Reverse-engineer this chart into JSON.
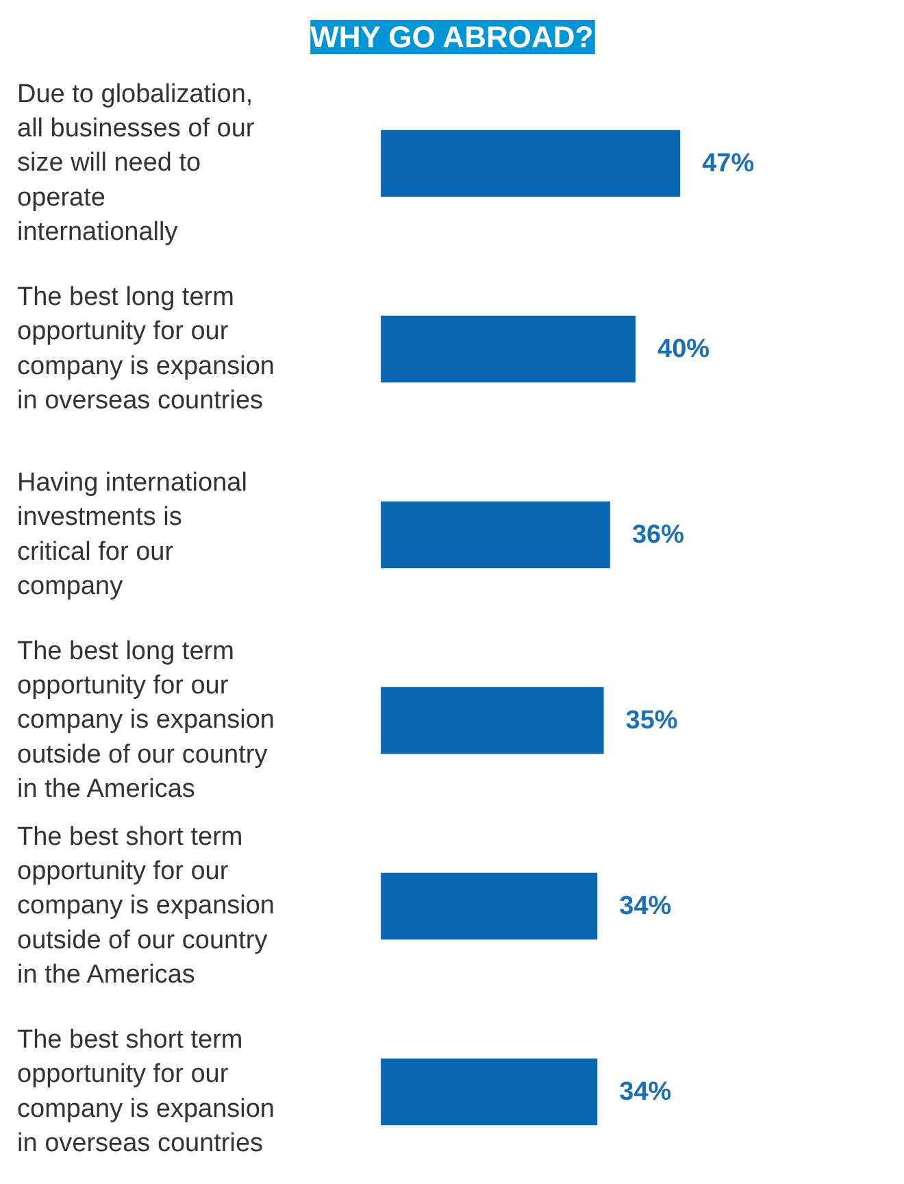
{
  "chart_data": {
    "type": "bar",
    "orientation": "horizontal",
    "title": "WHY GO ABROAD?",
    "categories": [
      "Due to globalization, all businesses of our size will need to operate internationally",
      "The best long term opportunity for our company is expansion in overseas countries",
      "Having international investments is critical for our company",
      "The best long term opportunity for our company is expansion outside of our country in the Americas",
      "The best short term opportunity for our company is expansion outside of our country in the Americas",
      "The best short term opportunity for our company is expansion in overseas countries"
    ],
    "values": [
      47,
      40,
      36,
      35,
      34,
      34
    ],
    "value_labels": [
      "47%",
      "40%",
      "36%",
      "35%",
      "34%",
      "34%"
    ],
    "color": "#0a68b0"
  }
}
